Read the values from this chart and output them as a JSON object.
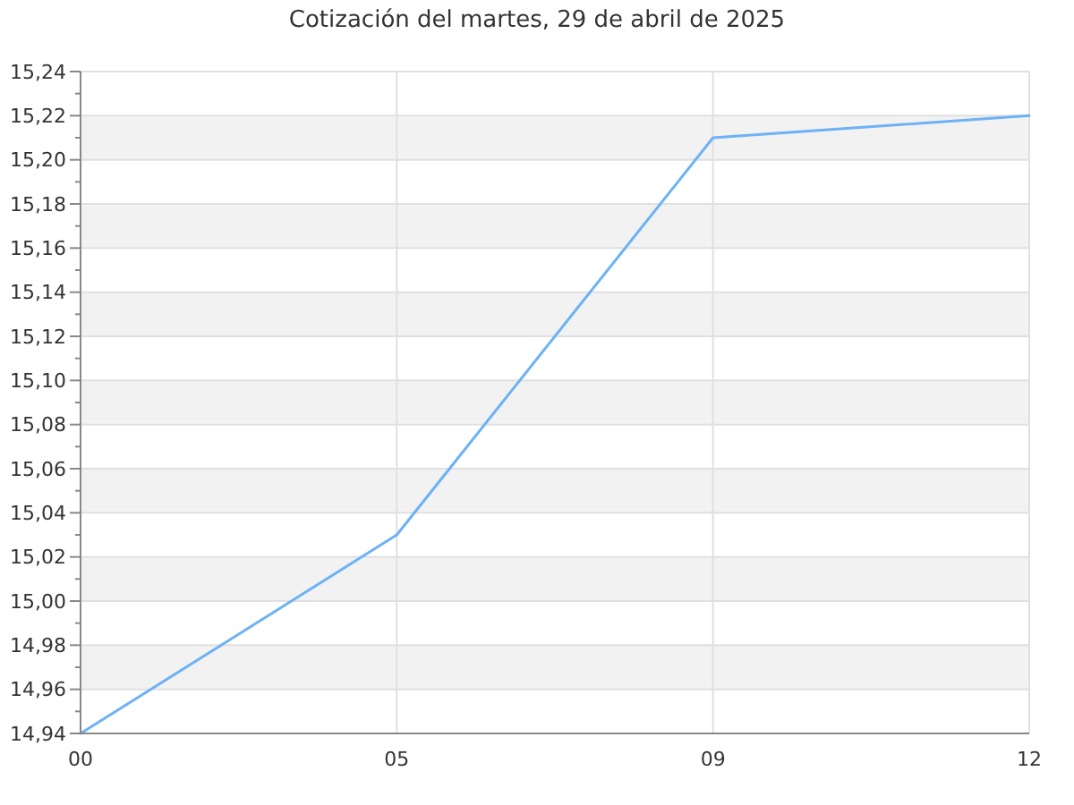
{
  "chart_data": {
    "type": "line",
    "title": "Cotización del martes, 29 de abril de 2025",
    "categories": [
      "00",
      "05",
      "09",
      "12"
    ],
    "series": [
      {
        "color": "#6cb2f5",
        "values": [
          14.94,
          15.03,
          15.21,
          15.22
        ]
      }
    ],
    "ylim": [
      14.94,
      15.24
    ],
    "yticks": [
      {
        "value": 14.94,
        "label": "14,94"
      },
      {
        "value": 14.95,
        "label": null
      },
      {
        "value": 14.96,
        "label": "14,96"
      },
      {
        "value": 14.97,
        "label": null
      },
      {
        "value": 14.98,
        "label": "14,98"
      },
      {
        "value": 14.99,
        "label": null
      },
      {
        "value": 15.0,
        "label": "15,00"
      },
      {
        "value": 15.01,
        "label": null
      },
      {
        "value": 15.02,
        "label": "15,02"
      },
      {
        "value": 15.03,
        "label": null
      },
      {
        "value": 15.04,
        "label": "15,04"
      },
      {
        "value": 15.05,
        "label": null
      },
      {
        "value": 15.06,
        "label": "15,06"
      },
      {
        "value": 15.07,
        "label": null
      },
      {
        "value": 15.08,
        "label": "15,08"
      },
      {
        "value": 15.09,
        "label": null
      },
      {
        "value": 15.1,
        "label": "15,10"
      },
      {
        "value": 15.11,
        "label": null
      },
      {
        "value": 15.12,
        "label": "15,12"
      },
      {
        "value": 15.13,
        "label": null
      },
      {
        "value": 15.14,
        "label": "15,14"
      },
      {
        "value": 15.15,
        "label": null
      },
      {
        "value": 15.16,
        "label": "15,16"
      },
      {
        "value": 15.17,
        "label": null
      },
      {
        "value": 15.18,
        "label": "15,18"
      },
      {
        "value": 15.19,
        "label": null
      },
      {
        "value": 15.2,
        "label": "15,20"
      },
      {
        "value": 15.21,
        "label": null
      },
      {
        "value": 15.22,
        "label": "15,22"
      },
      {
        "value": 15.23,
        "label": null
      },
      {
        "value": 15.24,
        "label": "15,24"
      }
    ],
    "grid": true,
    "marker": "none",
    "line_style": "solid"
  }
}
